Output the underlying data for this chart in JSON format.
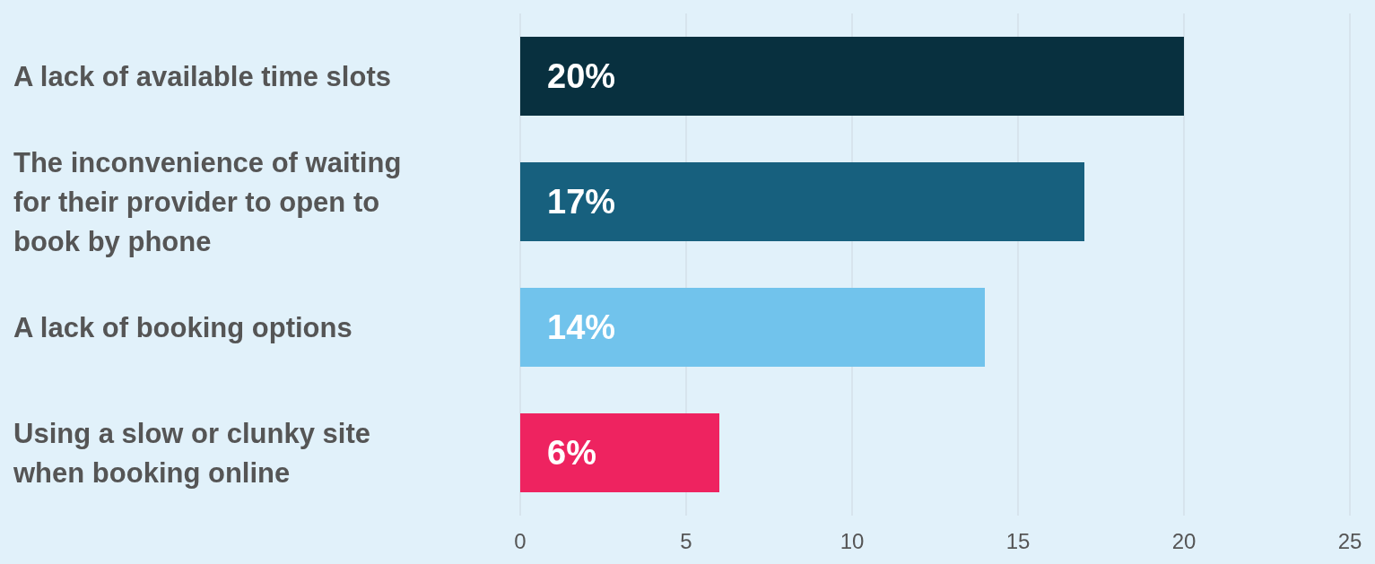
{
  "chart_data": {
    "type": "bar",
    "orientation": "horizontal",
    "categories": [
      "A lack of available time slots",
      "The inconvenience of waiting for their provider to open to book by phone",
      "A lack of booking options",
      "Using a slow or clunky site when booking online"
    ],
    "values": [
      20,
      17,
      14,
      6
    ],
    "colors": [
      "#08303f",
      "#17607e",
      "#71c3ec",
      "#ee2360"
    ],
    "value_labels": [
      "20%",
      "17%",
      "14%",
      "6%"
    ],
    "xlim": [
      0,
      25
    ],
    "xticks": [
      0,
      5,
      10,
      15,
      20,
      25
    ],
    "grid": "x"
  }
}
